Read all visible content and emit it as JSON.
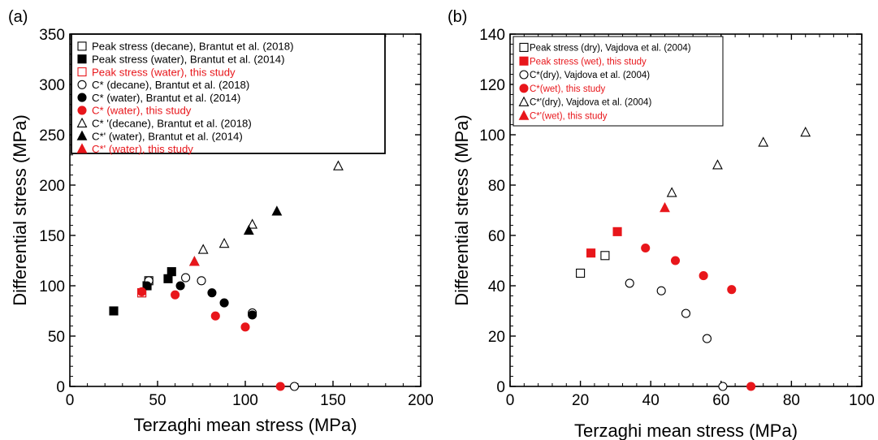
{
  "chart_data": [
    {
      "type": "scatter",
      "panel_label": "(a)",
      "xlabel": "Terzaghi mean stress (MPa)",
      "ylabel": "Differential stress (MPa)",
      "xlim": [
        0,
        200
      ],
      "ylim": [
        0,
        350
      ],
      "xticks": [
        "0",
        "50",
        "100",
        "150",
        "200"
      ],
      "yticks": [
        "0",
        "50",
        "100",
        "150",
        "200",
        "250",
        "300",
        "350"
      ],
      "legend_position": "top-left, boxed",
      "series": [
        {
          "name": "Peak stress (decane), Brantut et al. (2018)",
          "marker": "square",
          "filled": false,
          "color": "#000000",
          "points": [
            [
              45,
              105
            ],
            [
              41,
              93
            ]
          ]
        },
        {
          "name": "Peak stress (water), Brantut et al. (2014)",
          "marker": "square",
          "filled": true,
          "color": "#000000",
          "points": [
            [
              25,
              75
            ],
            [
              44,
              100
            ],
            [
              56,
              107
            ],
            [
              58,
              114
            ]
          ]
        },
        {
          "name": "Peak stress (water), this study",
          "marker": "square",
          "filled": false,
          "color": "#e8161b",
          "points": [
            [
              41,
              93
            ]
          ]
        },
        {
          "name": "C* (decane), Brantut et al. (2018)",
          "marker": "circle",
          "filled": false,
          "color": "#000000",
          "points": [
            [
              45,
              105
            ],
            [
              66,
              108
            ],
            [
              75,
              105
            ],
            [
              104,
              73
            ],
            [
              128,
              0
            ]
          ]
        },
        {
          "name": "C* (water), Brantut et al. (2014)",
          "marker": "circle",
          "filled": true,
          "color": "#000000",
          "points": [
            [
              44,
              100
            ],
            [
              63,
              100
            ],
            [
              81,
              93
            ],
            [
              88,
              83
            ],
            [
              104,
              71
            ]
          ]
        },
        {
          "name": "C* (water), this study",
          "marker": "circle",
          "filled": true,
          "color": "#e8161b",
          "points": [
            [
              41,
              94
            ],
            [
              60,
              91
            ],
            [
              83,
              70
            ],
            [
              100,
              59
            ],
            [
              120,
              0
            ]
          ]
        },
        {
          "name": "C* '(decane), Brantut et al. (2018)",
          "marker": "triangle",
          "filled": false,
          "color": "#000000",
          "points": [
            [
              76,
              136
            ],
            [
              88,
              142
            ],
            [
              104,
              161
            ],
            [
              153,
              219
            ]
          ]
        },
        {
          "name": "C*' (water), Brantut et al. (2014)",
          "marker": "triangle",
          "filled": true,
          "color": "#000000",
          "points": [
            [
              71,
              124
            ],
            [
              102,
              155
            ],
            [
              118,
              174
            ]
          ]
        },
        {
          "name": "C*' (water), this study",
          "marker": "triangle",
          "filled": true,
          "color": "#e8161b",
          "points": [
            [
              71,
              124
            ]
          ]
        }
      ]
    },
    {
      "type": "scatter",
      "panel_label": "(b)",
      "xlabel": "Terzaghi mean stress (MPa)",
      "ylabel": "Differential stress (MPa)",
      "xlim": [
        0,
        100
      ],
      "ylim": [
        0,
        140
      ],
      "xticks": [
        "0",
        "20",
        "40",
        "60",
        "80",
        "100"
      ],
      "yticks": [
        "0",
        "20",
        "40",
        "60",
        "80",
        "100",
        "120",
        "140"
      ],
      "legend_position": "top-left, boxed",
      "series": [
        {
          "name": "Peak stress (dry), Vajdova et al. (2004)",
          "marker": "square",
          "filled": false,
          "color": "#000000",
          "points": [
            [
              20,
              45
            ],
            [
              27,
              52
            ]
          ]
        },
        {
          "name": "Peak stress (wet), this study",
          "marker": "square",
          "filled": true,
          "color": "#e8161b",
          "points": [
            [
              23,
              53
            ],
            [
              30.5,
              61.5
            ]
          ]
        },
        {
          "name": "C*(dry), Vajdova et al. (2004)",
          "marker": "circle",
          "filled": false,
          "color": "#000000",
          "points": [
            [
              34,
              41
            ],
            [
              43,
              38
            ],
            [
              50,
              29
            ],
            [
              56,
              19
            ],
            [
              60.5,
              0
            ]
          ]
        },
        {
          "name": "C*(wet), this study",
          "marker": "circle",
          "filled": true,
          "color": "#e8161b",
          "points": [
            [
              38.5,
              55
            ],
            [
              47,
              50
            ],
            [
              55,
              44
            ],
            [
              63,
              38.5
            ],
            [
              68.5,
              0
            ]
          ]
        },
        {
          "name": "C*'(dry), Vajdova et al. (2004)",
          "marker": "triangle",
          "filled": false,
          "color": "#000000",
          "points": [
            [
              46,
              77
            ],
            [
              59,
              88
            ],
            [
              72,
              97
            ],
            [
              84,
              101
            ]
          ]
        },
        {
          "name": "C*'(wet), this study",
          "marker": "triangle",
          "filled": true,
          "color": "#e8161b",
          "points": [
            [
              44,
              71
            ]
          ]
        }
      ]
    }
  ]
}
